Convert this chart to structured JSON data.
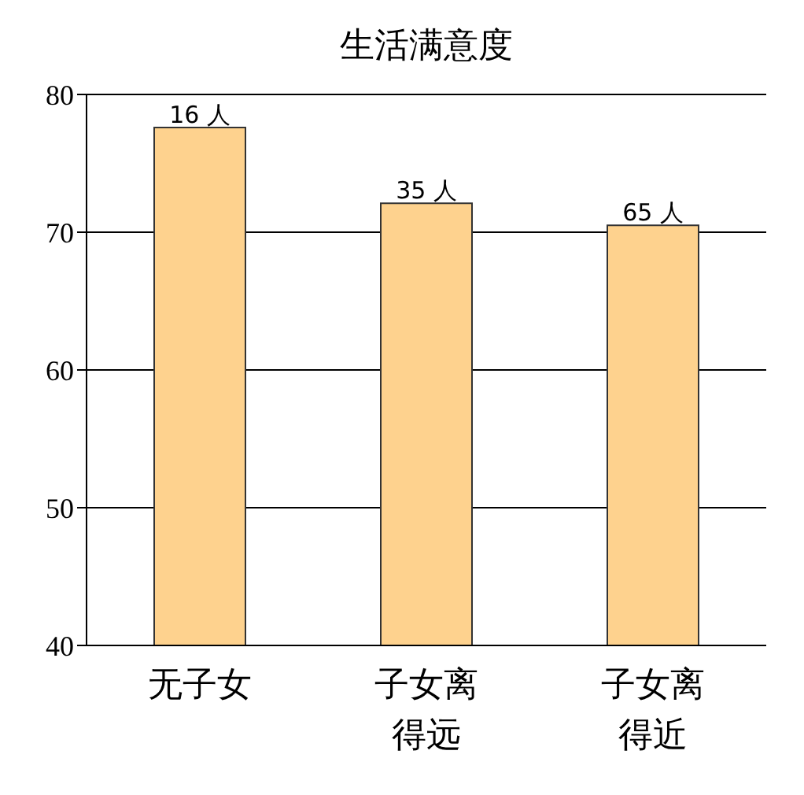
{
  "chart_data": {
    "type": "bar",
    "title": "生活满意度",
    "categories": [
      "无子女",
      "子女离得远",
      "子女离得近"
    ],
    "values": [
      77.6,
      72.1,
      70.5
    ],
    "annotations": [
      {
        "text": "16 人",
        "x": "无子女",
        "y": 77.6
      },
      {
        "text": "35 人",
        "x": "子女离得远",
        "y": 72.1
      },
      {
        "text": "65 人",
        "x": "子女离得近",
        "y": 70.5
      }
    ],
    "color": "#fed28e",
    "ylim": [
      40,
      80
    ],
    "yticks": [
      40,
      50,
      60,
      70,
      80
    ],
    "grid": "y"
  }
}
